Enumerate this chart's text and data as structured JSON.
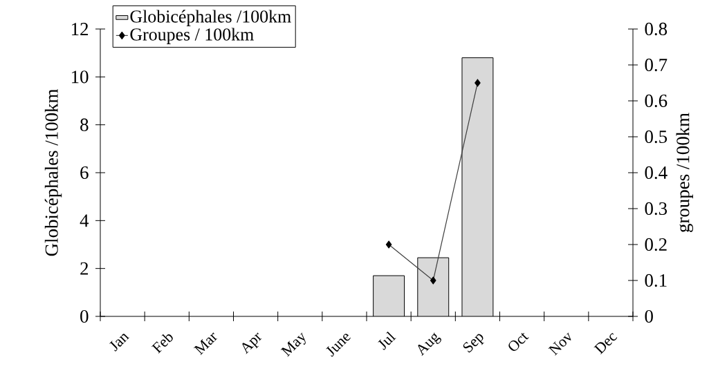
{
  "chart_data": {
    "type": "bar",
    "categories": [
      "Jan",
      "Feb",
      "Mar",
      "Apr",
      "May",
      "June",
      "Jul",
      "Aug",
      "Sep",
      "Oct",
      "Nov",
      "Dec"
    ],
    "ylabel": "Globicéphales /100km",
    "y2label": "groupes /100km",
    "ylim": [
      0,
      12
    ],
    "yticks": [
      0,
      2,
      4,
      6,
      8,
      10,
      12
    ],
    "y2lim": [
      0,
      0.8
    ],
    "y2ticks": [
      0,
      0.1,
      0.2,
      0.3,
      0.4,
      0.5,
      0.6,
      0.7,
      0.8
    ],
    "legend": "top left",
    "series": [
      {
        "name": "Globicéphales /100km",
        "color": "#d9d9d9",
        "values": [
          null,
          null,
          null,
          null,
          null,
          null,
          1.7,
          2.45,
          10.8,
          null,
          null,
          null
        ]
      },
      {
        "name": "Groupes / 100km",
        "type": "line",
        "axis": "y2",
        "color": "#404040",
        "marker": "diamond",
        "values": [
          null,
          null,
          null,
          null,
          null,
          null,
          0.2,
          0.1,
          0.65,
          null,
          null,
          null
        ]
      }
    ]
  }
}
